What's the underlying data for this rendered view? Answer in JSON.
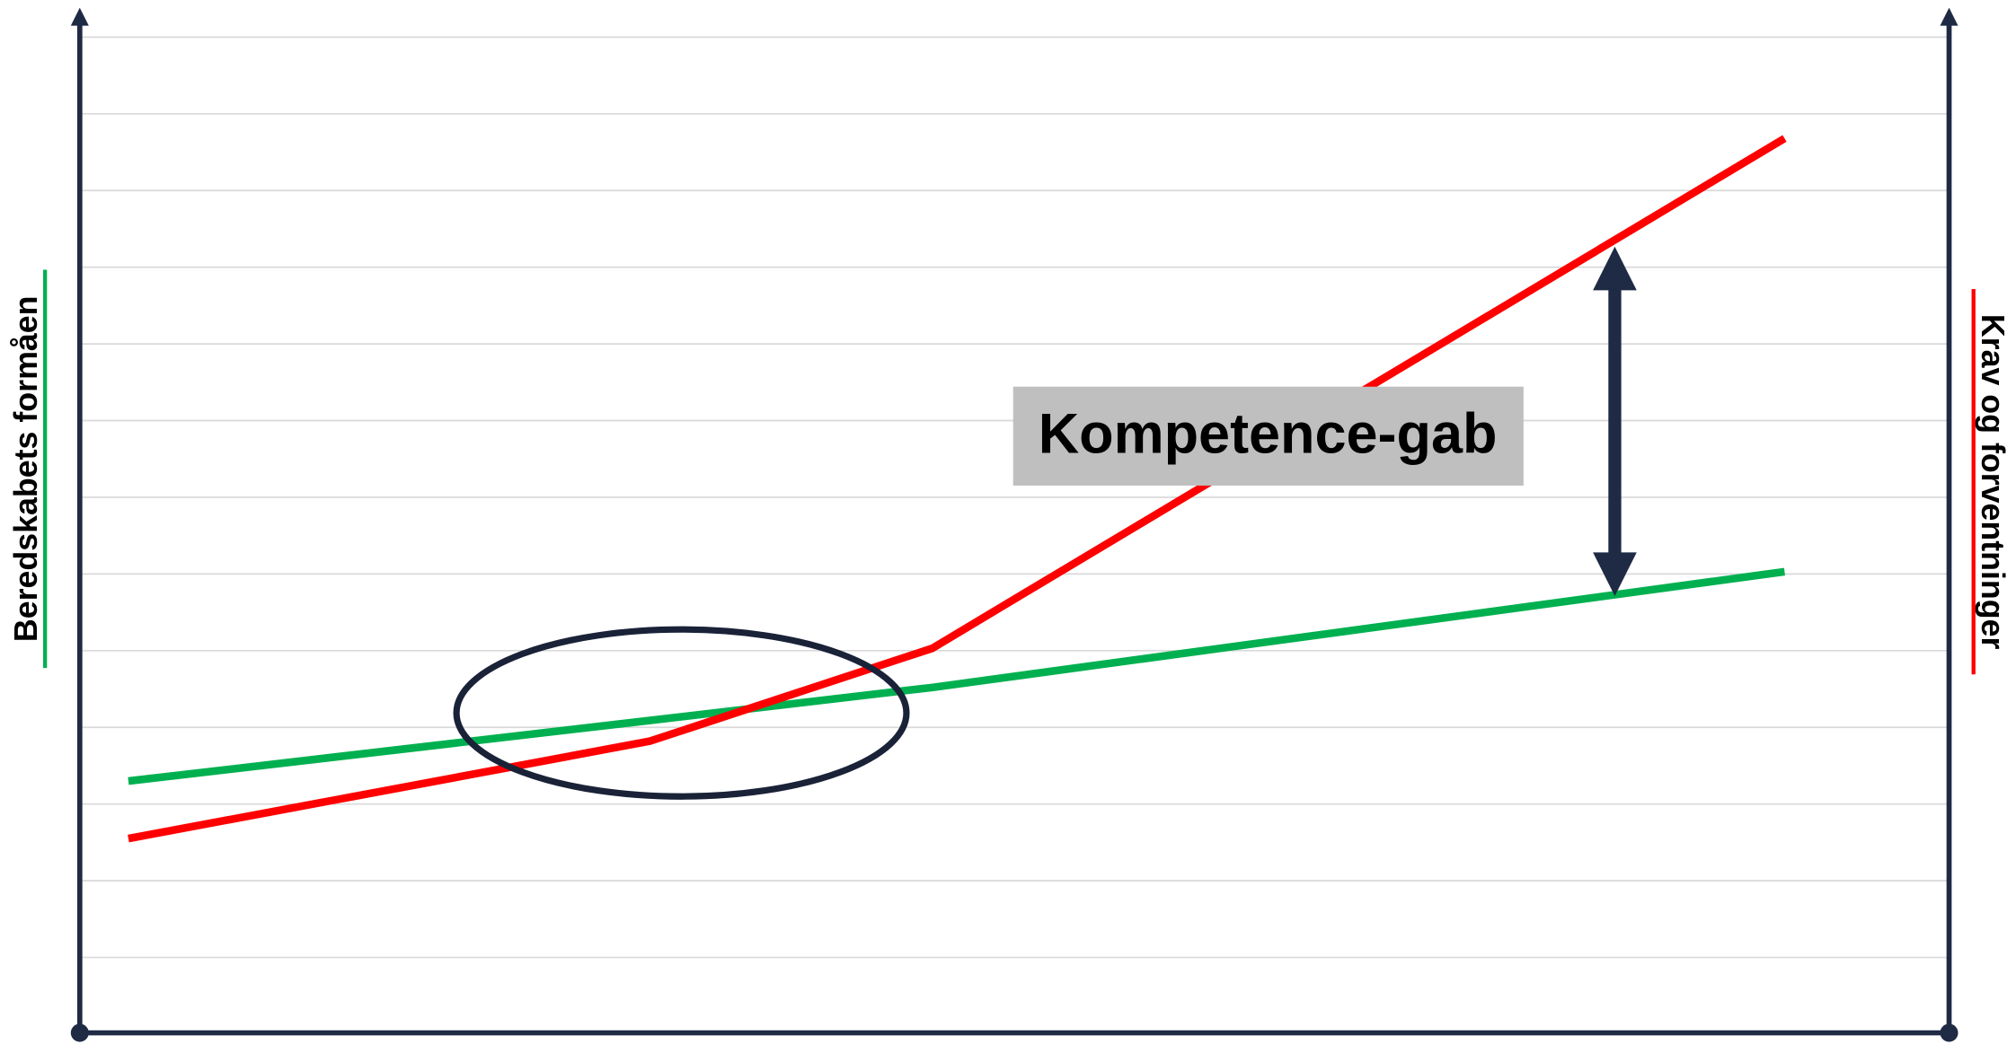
{
  "chart_data": {
    "type": "line",
    "ylabel": "Beredskabets formåen",
    "y2label": "Krav og forventninger",
    "annotation": "Kompetence-gab",
    "x": [
      2.6,
      30.5,
      45.6,
      91.2
    ],
    "xlim": [
      0,
      100
    ],
    "ylim": [
      0,
      13.3
    ],
    "yticks": [
      1,
      2,
      3,
      4,
      5,
      6,
      7,
      8,
      9,
      10,
      11,
      12,
      13
    ],
    "grid": true,
    "series": [
      {
        "color": "#00b050",
        "values": [
          3.3,
          4.09,
          4.52,
          6.03
        ]
      },
      {
        "color": "#ff0000",
        "values": [
          2.55,
          3.82,
          5.03,
          11.68
        ]
      }
    ]
  }
}
